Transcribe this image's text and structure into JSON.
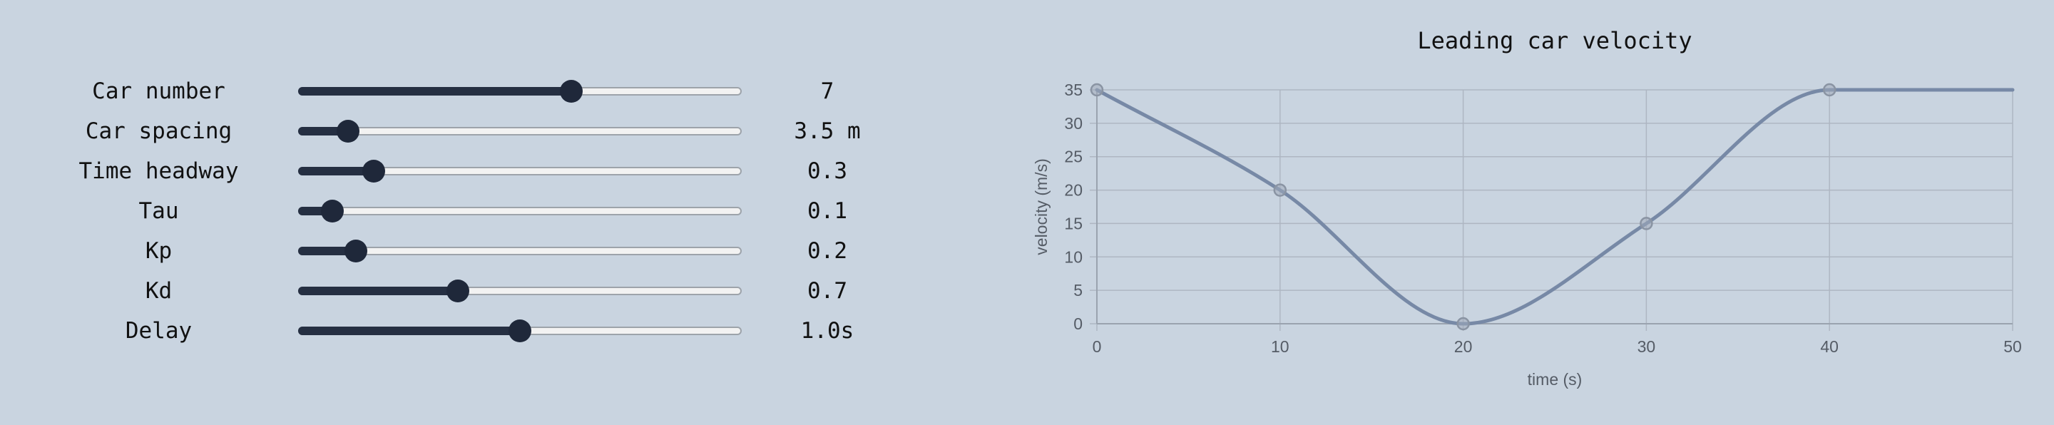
{
  "controls": {
    "sliders": [
      {
        "label": "Car number",
        "value_text": "7",
        "fraction": 0.615
      },
      {
        "label": "Car spacing",
        "value_text": "3.5 m",
        "fraction": 0.112
      },
      {
        "label": "Time headway",
        "value_text": "0.3",
        "fraction": 0.171
      },
      {
        "label": "Tau",
        "value_text": "0.1",
        "fraction": 0.077
      },
      {
        "label": "Kp",
        "value_text": "0.2",
        "fraction": 0.131
      },
      {
        "label": "Kd",
        "value_text": "0.7",
        "fraction": 0.36
      },
      {
        "label": "Delay",
        "value_text": "1.0s",
        "fraction": 0.5
      }
    ]
  },
  "chart_title": "Leading car velocity",
  "chart_data": {
    "type": "line",
    "title": "Leading car velocity",
    "xlabel": "time (s)",
    "ylabel": "velocity (m/s)",
    "xlim": [
      0,
      50
    ],
    "ylim": [
      0,
      35
    ],
    "x_ticks": [
      "0",
      "10",
      "20",
      "30",
      "40",
      "50"
    ],
    "y_ticks": [
      "0",
      "5",
      "10",
      "15",
      "20",
      "25",
      "30",
      "35"
    ],
    "grid": true,
    "series": [
      {
        "points": [
          [
            0,
            35
          ],
          [
            10,
            20
          ],
          [
            20,
            0
          ],
          [
            30,
            15
          ],
          [
            40,
            35
          ],
          [
            50,
            35
          ]
        ],
        "marker_points": [
          [
            0,
            35
          ],
          [
            10,
            20
          ],
          [
            20,
            0
          ],
          [
            30,
            15
          ],
          [
            40,
            35
          ]
        ],
        "color": "#7789a6"
      }
    ]
  },
  "colors": {
    "background": "#c9d4e0",
    "slider_fill": "#252f42",
    "slider_thumb": "#1f283a",
    "slider_track": "#f2f2f2",
    "line": "#7789a6",
    "grid": "#aeb6c2"
  }
}
